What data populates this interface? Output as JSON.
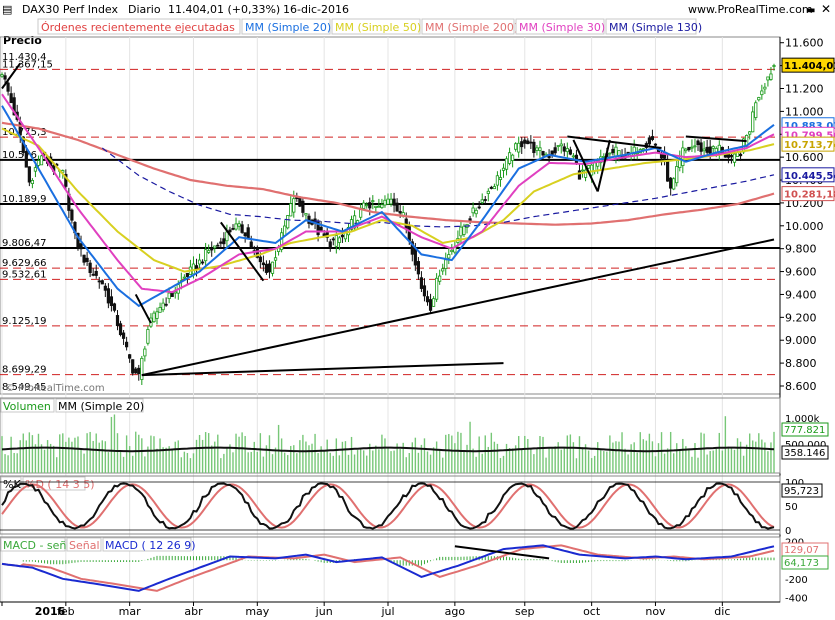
{
  "header": {
    "symbol": "DAX30 Perf Index",
    "period": "Diario",
    "quote": "11.404,01 (+0,33%)",
    "date": "16-dic-2016",
    "site": "www.ProRealTime.com"
  },
  "legend": {
    "main_label": "Precio",
    "orders": "Órdenes recientemente ejecutadas",
    "ma": [
      {
        "label": "MM (Simple 20)",
        "color": "#1a6fe0"
      },
      {
        "label": "MM (Simple 50)",
        "color": "#d8d020"
      },
      {
        "label": "MM (Simple 200)",
        "color": "#e07070"
      },
      {
        "label": "MM (Simple 30)",
        "color": "#e040c0"
      },
      {
        "label": "MM (Simple 130)",
        "color": "#1a1aa0"
      }
    ]
  },
  "colors": {
    "up": "#1a9a1a",
    "down": "#111111",
    "sma20": "#1a6fe0",
    "sma50": "#d8d020",
    "sma200": "#e07070",
    "sma30": "#e040c0",
    "sma130": "#1a1aa0",
    "volume": "#77c777",
    "k": "#111111",
    "d": "#e07070",
    "macd": "#1a2ad0",
    "signal": "#e07070",
    "macd_hist": "#3aa83a"
  },
  "months": [
    "2016",
    "feb",
    "mar",
    "abr",
    "may",
    "jun",
    "jul",
    "ago",
    "sep",
    "oct",
    "nov",
    "dic"
  ],
  "price_panel": {
    "y_ticks": [
      8600,
      8800,
      9000,
      9200,
      9400,
      9600,
      9800,
      10000,
      10200,
      10400,
      10600,
      10800,
      11000,
      11200,
      11400,
      11600
    ],
    "y_tick_labels": [
      "8.600",
      "8.800",
      "9.000",
      "9.200",
      "9.400",
      "9.600",
      "9.800",
      "10.000",
      "10.200",
      "10.400",
      "10.600",
      "10.800",
      "11.000",
      "11.200",
      "11.400",
      "11.600"
    ],
    "ylim": [
      8530,
      11650
    ],
    "level_labels": [
      {
        "text": "11.430,4",
        "value": 11430.4
      },
      {
        "text": "11.367,15",
        "value": 11367.15
      },
      {
        "text": "10.775,3",
        "value": 10775.3
      },
      {
        "text": "10.576",
        "value": 10576
      },
      {
        "text": "10.189,9",
        "value": 10189.9
      },
      {
        "text": "9.806,47",
        "value": 9806.47
      },
      {
        "text": "9.629,66",
        "value": 9629.66
      },
      {
        "text": "9.532,61",
        "value": 9532.61
      },
      {
        "text": "9.125,19",
        "value": 9125.19
      },
      {
        "text": "8.699,29",
        "value": 8699.29
      },
      {
        "text": "8.549,45",
        "value": 8549.45
      }
    ],
    "badges": [
      {
        "text": "11.404,01",
        "value": 11404.01,
        "bg": "#ffd700",
        "fg": "#000000"
      },
      {
        "text": "10.883,03",
        "value": 10883.03,
        "bg": "#ffffff",
        "fg": "#1a6fe0"
      },
      {
        "text": "10.799,56",
        "value": 10799.56,
        "bg": "#ffffff",
        "fg": "#e040c0"
      },
      {
        "text": "10.713,74",
        "value": 10713.74,
        "bg": "#ffffff",
        "fg": "#c8a400"
      },
      {
        "text": "10.445,54",
        "value": 10445.54,
        "bg": "#ffffff",
        "fg": "#1a1aa0"
      },
      {
        "text": "10.281,18",
        "value": 10281.18,
        "bg": "#ffffff",
        "fg": "#d05050"
      }
    ],
    "dashed_levels": [
      11367,
      10775,
      9630,
      9532,
      9125,
      8699
    ],
    "solid_levels": [
      10576,
      10190,
      9806
    ],
    "watermark": "© ProRealTime.com"
  },
  "volume_panel": {
    "title": "Volumen",
    "ma_label": "MM (Simple 20)",
    "ticks": [
      "1.000k",
      "500.000"
    ],
    "badges": [
      "777.821",
      "358.146"
    ]
  },
  "stoch_panel": {
    "k_label": "%K",
    "d_label": "%D ( 14 3 5)",
    "ticks": [
      "100",
      "50",
      "0"
    ],
    "badge": "95,723"
  },
  "macd_panel": {
    "labels": [
      "MACD - señal",
      "Señal",
      "MACD ( 12 26 9)"
    ],
    "ticks": [
      "200",
      "0",
      "-200",
      "-400"
    ],
    "badges": [
      "129,07",
      "64,173"
    ]
  },
  "chart_data": {
    "type": "candlestick",
    "title": "DAX30 Perf Index",
    "period": "Diario",
    "last": 11404.01,
    "change_pct": 0.33,
    "date": "16-dic-2016",
    "close_path": [
      [
        0,
        11350
      ],
      [
        5,
        10900
      ],
      [
        9,
        10380
      ],
      [
        13,
        10620
      ],
      [
        17,
        10500
      ],
      [
        20,
        10450
      ],
      [
        24,
        9900
      ],
      [
        28,
        9650
      ],
      [
        33,
        9500
      ],
      [
        38,
        9150
      ],
      [
        43,
        8750
      ],
      [
        45,
        8680
      ],
      [
        48,
        9100
      ],
      [
        52,
        9300
      ],
      [
        56,
        9400
      ],
      [
        60,
        9550
      ],
      [
        64,
        9650
      ],
      [
        68,
        9780
      ],
      [
        72,
        9850
      ],
      [
        76,
        10000
      ],
      [
        80,
        9950
      ],
      [
        84,
        9700
      ],
      [
        88,
        9600
      ],
      [
        92,
        9900
      ],
      [
        96,
        10250
      ],
      [
        100,
        10100
      ],
      [
        104,
        9950
      ],
      [
        108,
        9850
      ],
      [
        112,
        9900
      ],
      [
        116,
        10050
      ],
      [
        120,
        10200
      ],
      [
        124,
        10150
      ],
      [
        128,
        10250
      ],
      [
        132,
        10080
      ],
      [
        136,
        9700
      ],
      [
        138,
        9450
      ],
      [
        141,
        9300
      ],
      [
        144,
        9600
      ],
      [
        148,
        9800
      ],
      [
        152,
        10000
      ],
      [
        156,
        10150
      ],
      [
        160,
        10300
      ],
      [
        164,
        10450
      ],
      [
        168,
        10650
      ],
      [
        172,
        10750
      ],
      [
        176,
        10650
      ],
      [
        180,
        10620
      ],
      [
        184,
        10700
      ],
      [
        188,
        10600
      ],
      [
        190,
        10450
      ],
      [
        194,
        10500
      ],
      [
        198,
        10600
      ],
      [
        202,
        10650
      ],
      [
        206,
        10600
      ],
      [
        210,
        10700
      ],
      [
        214,
        10750
      ],
      [
        218,
        10550
      ],
      [
        220,
        10300
      ],
      [
        224,
        10650
      ],
      [
        228,
        10700
      ],
      [
        232,
        10650
      ],
      [
        236,
        10680
      ],
      [
        240,
        10560
      ],
      [
        243,
        10650
      ],
      [
        246,
        10850
      ],
      [
        248,
        11100
      ],
      [
        250,
        11200
      ],
      [
        252,
        11300
      ],
      [
        254,
        11404
      ]
    ],
    "sma20": [
      [
        0,
        11050
      ],
      [
        12,
        10500
      ],
      [
        25,
        9900
      ],
      [
        38,
        9450
      ],
      [
        45,
        9300
      ],
      [
        55,
        9450
      ],
      [
        65,
        9600
      ],
      [
        78,
        9900
      ],
      [
        90,
        9850
      ],
      [
        100,
        10050
      ],
      [
        112,
        9950
      ],
      [
        125,
        10120
      ],
      [
        138,
        9750
      ],
      [
        148,
        9700
      ],
      [
        158,
        10050
      ],
      [
        170,
        10500
      ],
      [
        180,
        10620
      ],
      [
        192,
        10560
      ],
      [
        205,
        10620
      ],
      [
        215,
        10680
      ],
      [
        225,
        10560
      ],
      [
        235,
        10640
      ],
      [
        245,
        10700
      ],
      [
        254,
        10883
      ]
    ],
    "sma30": [
      [
        0,
        11150
      ],
      [
        12,
        10680
      ],
      [
        25,
        10150
      ],
      [
        38,
        9700
      ],
      [
        46,
        9450
      ],
      [
        56,
        9420
      ],
      [
        66,
        9550
      ],
      [
        78,
        9750
      ],
      [
        90,
        9800
      ],
      [
        100,
        9950
      ],
      [
        112,
        9950
      ],
      [
        125,
        10080
      ],
      [
        138,
        9900
      ],
      [
        148,
        9800
      ],
      [
        158,
        9950
      ],
      [
        170,
        10350
      ],
      [
        180,
        10550
      ],
      [
        192,
        10540
      ],
      [
        205,
        10600
      ],
      [
        215,
        10640
      ],
      [
        225,
        10600
      ],
      [
        235,
        10620
      ],
      [
        245,
        10680
      ],
      [
        254,
        10800
      ]
    ],
    "sma50": [
      [
        0,
        10850
      ],
      [
        12,
        10700
      ],
      [
        25,
        10300
      ],
      [
        38,
        9950
      ],
      [
        50,
        9700
      ],
      [
        60,
        9600
      ],
      [
        72,
        9650
      ],
      [
        85,
        9750
      ],
      [
        95,
        9850
      ],
      [
        105,
        9900
      ],
      [
        115,
        9950
      ],
      [
        125,
        10050
      ],
      [
        135,
        10000
      ],
      [
        145,
        9850
      ],
      [
        155,
        9900
      ],
      [
        165,
        10050
      ],
      [
        175,
        10300
      ],
      [
        188,
        10450
      ],
      [
        200,
        10500
      ],
      [
        212,
        10550
      ],
      [
        224,
        10580
      ],
      [
        236,
        10620
      ],
      [
        246,
        10660
      ],
      [
        254,
        10714
      ]
    ],
    "sma200": [
      [
        0,
        10900
      ],
      [
        12,
        10850
      ],
      [
        25,
        10750
      ],
      [
        38,
        10620
      ],
      [
        50,
        10500
      ],
      [
        62,
        10400
      ],
      [
        74,
        10350
      ],
      [
        86,
        10320
      ],
      [
        98,
        10250
      ],
      [
        110,
        10200
      ],
      [
        122,
        10120
      ],
      [
        134,
        10080
      ],
      [
        146,
        10050
      ],
      [
        158,
        10030
      ],
      [
        170,
        10020
      ],
      [
        182,
        10010
      ],
      [
        194,
        10020
      ],
      [
        206,
        10050
      ],
      [
        218,
        10100
      ],
      [
        230,
        10140
      ],
      [
        242,
        10190
      ],
      [
        254,
        10281
      ]
    ],
    "sma130": [
      [
        33,
        10680
      ],
      [
        45,
        10440
      ],
      [
        55,
        10300
      ],
      [
        65,
        10180
      ],
      [
        75,
        10100
      ],
      [
        85,
        10080
      ],
      [
        95,
        10050
      ],
      [
        105,
        10040
      ],
      [
        115,
        10020
      ],
      [
        125,
        10030
      ],
      [
        135,
        10000
      ],
      [
        145,
        9990
      ],
      [
        155,
        10000
      ],
      [
        165,
        10030
      ],
      [
        175,
        10080
      ],
      [
        185,
        10120
      ],
      [
        195,
        10160
      ],
      [
        205,
        10200
      ],
      [
        215,
        10240
      ],
      [
        225,
        10290
      ],
      [
        235,
        10340
      ],
      [
        245,
        10390
      ],
      [
        254,
        10446
      ]
    ],
    "trendlines": [
      {
        "from": [
          46,
          8695
        ],
        "to": [
          254,
          9880
        ]
      },
      {
        "from": [
          46,
          8695
        ],
        "to": [
          165,
          8800
        ]
      },
      {
        "from": [
          0,
          11200
        ],
        "to": [
          6,
          11420
        ]
      },
      {
        "from": [
          44,
          9400
        ],
        "to": [
          49,
          9150
        ]
      },
      {
        "from": [
          72,
          10030
        ],
        "to": [
          86,
          9520
        ]
      },
      {
        "from": [
          186,
          10780
        ],
        "to": [
          217,
          10680
        ]
      },
      {
        "from": [
          188,
          10750
        ],
        "to": [
          196,
          10300
        ]
      },
      {
        "from": [
          196,
          10300
        ],
        "to": [
          200,
          10750
        ]
      },
      {
        "from": [
          225,
          10780
        ],
        "to": [
          245,
          10740
        ]
      }
    ],
    "stochastic_k_range": [
      0,
      100
    ],
    "macd_range": [
      -450,
      250
    ]
  }
}
